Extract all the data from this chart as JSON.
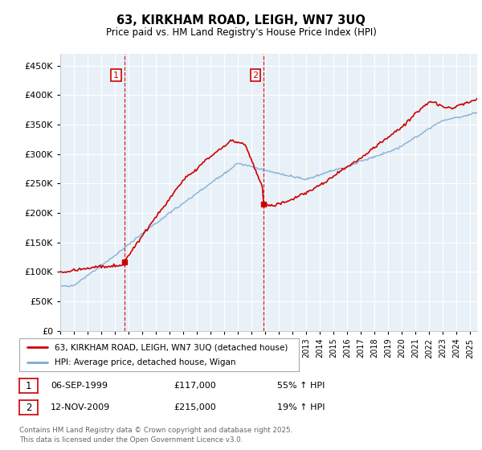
{
  "title": "63, KIRKHAM ROAD, LEIGH, WN7 3UQ",
  "subtitle": "Price paid vs. HM Land Registry's House Price Index (HPI)",
  "property_label": "63, KIRKHAM ROAD, LEIGH, WN7 3UQ (detached house)",
  "hpi_label": "HPI: Average price, detached house, Wigan",
  "footnote": "Contains HM Land Registry data © Crown copyright and database right 2025.\nThis data is licensed under the Open Government Licence v3.0.",
  "property_color": "#cc0000",
  "hpi_color": "#7aaad0",
  "purchase_1": {
    "label": "1",
    "date": "06-SEP-1999",
    "price": "£117,000",
    "hpi_change": "55% ↑ HPI"
  },
  "purchase_2": {
    "label": "2",
    "date": "12-NOV-2009",
    "price": "£215,000",
    "hpi_change": "19% ↑ HPI"
  },
  "vline_1_x": 1999.68,
  "vline_2_x": 2009.87,
  "ylim": [
    0,
    470000
  ],
  "yticks": [
    0,
    50000,
    100000,
    150000,
    200000,
    250000,
    300000,
    350000,
    400000,
    450000
  ],
  "xlim": [
    1995.0,
    2025.5
  ],
  "background_color": "#e8f0f8",
  "grid_color": "#ffffff",
  "title_fontsize": 10.5,
  "subtitle_fontsize": 8.5
}
